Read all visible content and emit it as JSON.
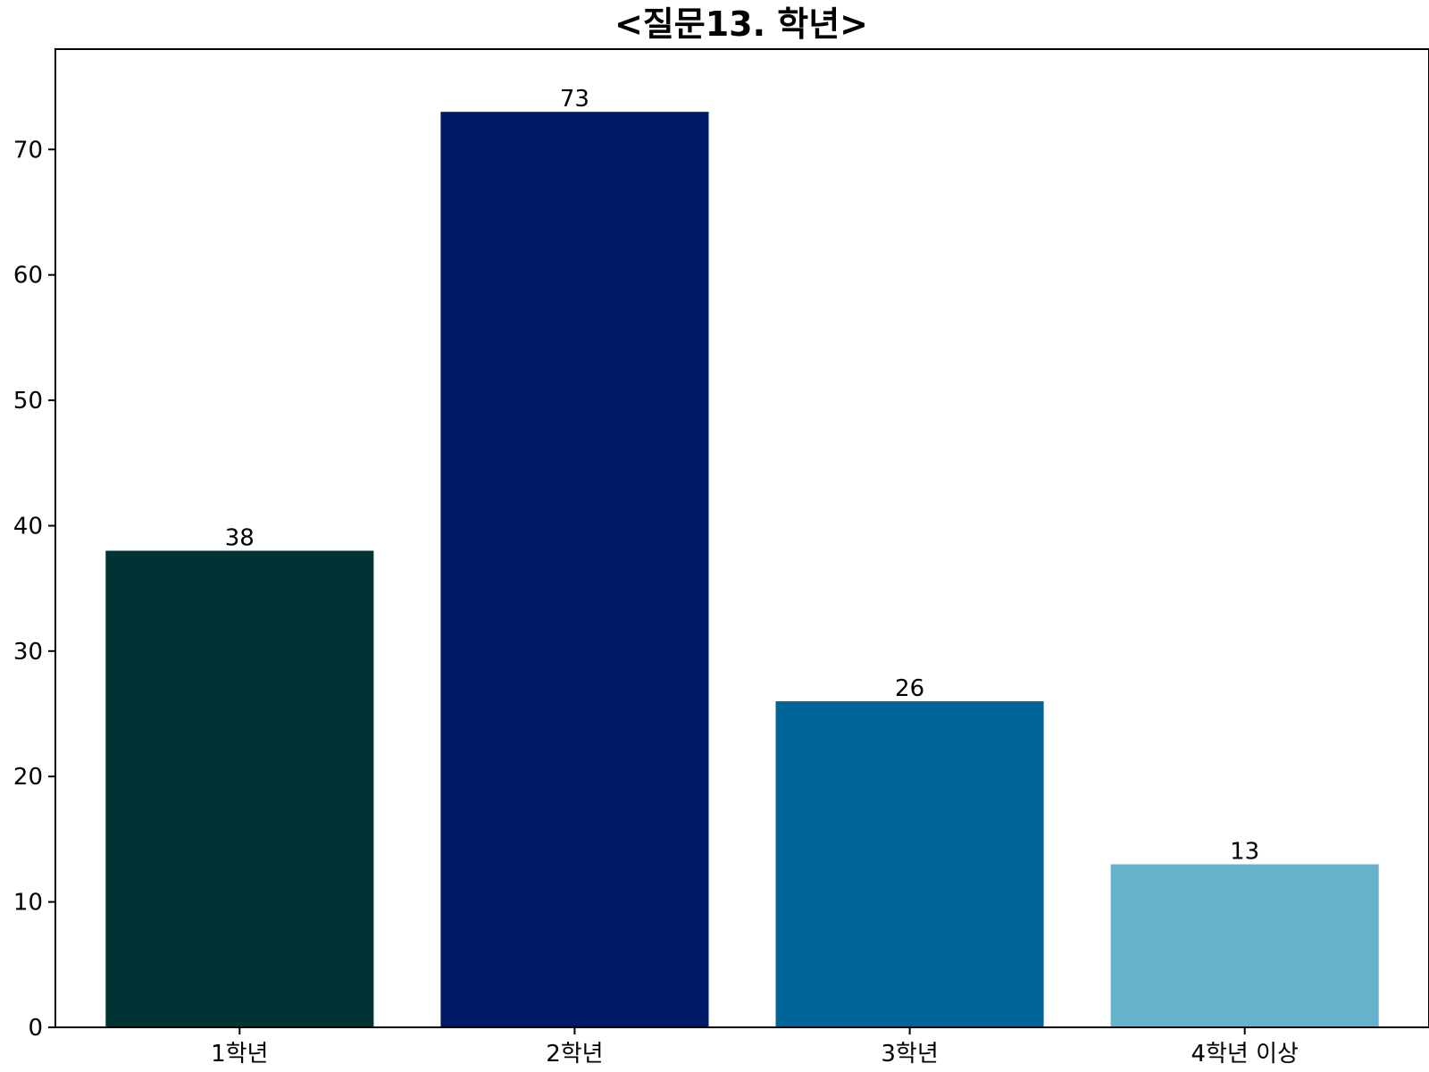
{
  "chart_data": {
    "type": "bar",
    "title": "<질문13. 학년>",
    "xlabel": "",
    "ylabel": "",
    "categories": [
      "1학년",
      "2학년",
      "3학년",
      "4학년 이상"
    ],
    "values": [
      38,
      73,
      26,
      13
    ],
    "colors": [
      "#003333",
      "#001a66",
      "#006699",
      "#66b2cc"
    ],
    "ylim": [
      0,
      78
    ],
    "yticks": [
      0,
      10,
      20,
      30,
      40,
      50,
      60,
      70
    ],
    "data_labels": [
      "38",
      "73",
      "26",
      "13"
    ],
    "grid": false,
    "legend": "none"
  }
}
